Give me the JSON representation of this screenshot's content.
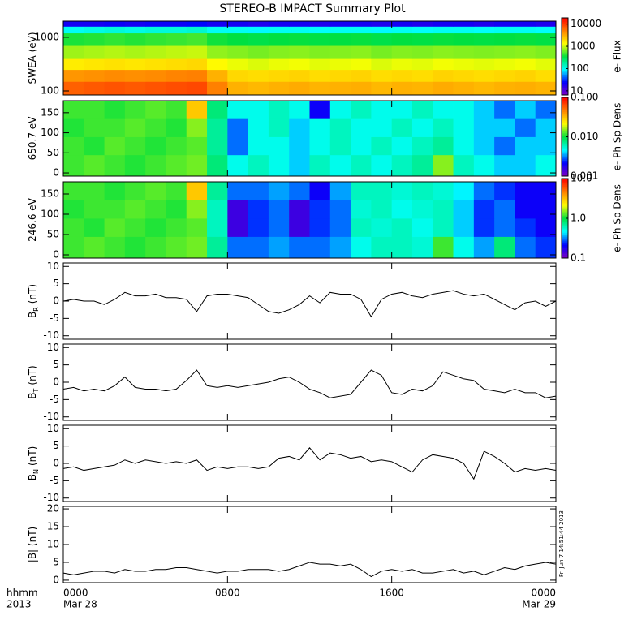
{
  "title": "STEREO-B IMPACT Summary Plot",
  "x_axis": {
    "xlim": [
      0,
      24
    ],
    "xticks": [
      {
        "value": 0,
        "label": "0000"
      },
      {
        "value": 8,
        "label": "0800"
      },
      {
        "value": 16,
        "label": "1600"
      },
      {
        "value": 24,
        "label": "0000"
      }
    ],
    "xtick_dates": [
      {
        "value": 0,
        "label": "Mar 28"
      },
      {
        "value": 24,
        "label": "Mar 29"
      }
    ],
    "unit_label": "hhmm",
    "year": "2013",
    "bins": [
      0,
      1,
      2,
      3,
      4,
      5,
      6,
      7,
      8,
      9,
      10,
      11,
      12,
      13,
      14,
      15,
      16,
      17,
      18,
      19,
      20,
      21,
      22,
      23,
      24
    ],
    "x": [
      0,
      0.5,
      1,
      1.5,
      2,
      2.5,
      3,
      3.5,
      4,
      4.5,
      5,
      5.5,
      6,
      6.5,
      7,
      7.5,
      8,
      8.5,
      9,
      9.5,
      10,
      10.5,
      11,
      11.5,
      12,
      12.5,
      13,
      13.5,
      14,
      14.5,
      15,
      15.5,
      16,
      16.5,
      17,
      17.5,
      18,
      18.5,
      19,
      19.5,
      20,
      20.5,
      21,
      21.5,
      22,
      22.5,
      23,
      23.5,
      24
    ]
  },
  "colormap": [
    "#8000c0",
    "#0000ff",
    "#00ffff",
    "#00e040",
    "#ffff00",
    "#ff8000",
    "#ff0000"
  ],
  "timestamp": "Fri Jun  7 14:51:44 2013",
  "chart_data": [
    {
      "type": "spectrogram",
      "ylabel": "SWEA (eV)",
      "log": true,
      "ylim": [
        84,
        2000
      ],
      "yticks": [
        100,
        1000
      ],
      "ybins": [
        84,
        150,
        250,
        400,
        700,
        1200,
        1600,
        2000
      ],
      "zlabel": "e- Flux",
      "zlim": [
        6.5,
        19000
      ],
      "zticks": [
        10,
        100,
        1000,
        10000
      ],
      "z": [
        [
          7000,
          7500,
          8000,
          7500,
          8000,
          8500,
          9000,
          5000,
          3000,
          2800,
          3000,
          3200,
          2900,
          3000,
          3100,
          2800,
          3000,
          2900,
          3200,
          3000,
          2800,
          3000,
          3100,
          2900
        ],
        [
          4000,
          4200,
          4500,
          4300,
          4500,
          4800,
          5000,
          3000,
          2000,
          1900,
          2000,
          2100,
          1900,
          2000,
          2100,
          1900,
          2000,
          1900,
          2100,
          2000,
          1900,
          2000,
          2100,
          1900
        ],
        [
          1600,
          1700,
          1800,
          1700,
          1800,
          1900,
          2000,
          1400,
          1200,
          1100,
          1200,
          1250,
          1150,
          1200,
          1250,
          1100,
          1200,
          1150,
          1250,
          1200,
          1150,
          1200,
          1250,
          1150
        ],
        [
          800,
          850,
          900,
          850,
          900,
          950,
          1000,
          750,
          700,
          650,
          700,
          720,
          680,
          700,
          720,
          650,
          700,
          680,
          720,
          700,
          680,
          700,
          720,
          680
        ],
        [
          400,
          420,
          450,
          420,
          450,
          470,
          500,
          380,
          350,
          330,
          350,
          360,
          340,
          350,
          360,
          330,
          350,
          340,
          360,
          350,
          340,
          350,
          360,
          340
        ],
        [
          100,
          110,
          120,
          110,
          120,
          120,
          130,
          100,
          100,
          90,
          100,
          100,
          95,
          100,
          100,
          90,
          100,
          95,
          100,
          100,
          95,
          100,
          100,
          95
        ],
        [
          20,
          20,
          22,
          20,
          22,
          22,
          25,
          20,
          20,
          18,
          20,
          20,
          18,
          20,
          20,
          18,
          20,
          18,
          20,
          20,
          18,
          20,
          20,
          18
        ]
      ]
    },
    {
      "type": "spectrogram",
      "ylabel": "650.7 eV",
      "ylim": [
        -8,
        180
      ],
      "yticks": [
        0,
        50,
        100,
        150
      ],
      "ybins": [
        0,
        45,
        90,
        135,
        180
      ],
      "zlabel": "e- Ph Sp Dens",
      "zlim": [
        0.001,
        0.1
      ],
      "zticks": [
        0.001,
        {
          "value": 0.01,
          "label": "0.010"
        },
        {
          "value": 0.1,
          "label": "0.100"
        }
      ],
      "z": [
        [
          0.012,
          0.013,
          0.012,
          0.011,
          0.012,
          0.013,
          0.014,
          0.008,
          0.005,
          0.006,
          0.005,
          0.004,
          0.006,
          0.005,
          0.006,
          0.005,
          0.006,
          0.007,
          0.015,
          0.006,
          0.005,
          0.004,
          0.004,
          0.005
        ],
        [
          0.012,
          0.011,
          0.013,
          0.012,
          0.011,
          0.012,
          0.013,
          0.007,
          0.003,
          0.005,
          0.005,
          0.004,
          0.005,
          0.006,
          0.005,
          0.006,
          0.005,
          0.006,
          0.007,
          0.005,
          0.004,
          0.003,
          0.004,
          0.004
        ],
        [
          0.011,
          0.012,
          0.012,
          0.013,
          0.012,
          0.011,
          0.015,
          0.007,
          0.003,
          0.005,
          0.006,
          0.004,
          0.005,
          0.006,
          0.005,
          0.005,
          0.006,
          0.005,
          0.006,
          0.005,
          0.004,
          0.004,
          0.003,
          0.004
        ],
        [
          0.012,
          0.012,
          0.011,
          0.012,
          0.013,
          0.012,
          0.03,
          0.008,
          0.005,
          0.005,
          0.006,
          0.005,
          0.002,
          0.005,
          0.006,
          0.005,
          0.005,
          0.006,
          0.005,
          0.005,
          0.004,
          0.003,
          0.004,
          0.003
        ]
      ]
    },
    {
      "type": "spectrogram",
      "ylabel": "246.6 eV",
      "ylim": [
        -8,
        180
      ],
      "yticks": [
        0,
        50,
        100,
        150
      ],
      "ybins": [
        0,
        45,
        90,
        135,
        180
      ],
      "zlabel": "e- Ph Sp Dens",
      "zlim": [
        0.1,
        10
      ],
      "zticks": [
        0.1,
        {
          "value": 1,
          "label": "1.0"
        },
        {
          "value": 10,
          "label": "10.0"
        }
      ],
      "z": [
        [
          1.2,
          1.3,
          1.2,
          1.1,
          1.2,
          1.3,
          1.4,
          0.7,
          0.3,
          0.3,
          0.35,
          0.3,
          0.3,
          0.35,
          0.5,
          0.6,
          0.6,
          0.55,
          1.2,
          0.5,
          0.35,
          0.8,
          0.3,
          0.25
        ],
        [
          1.2,
          1.1,
          1.3,
          1.2,
          1.1,
          1.2,
          1.3,
          0.6,
          0.15,
          0.25,
          0.3,
          0.15,
          0.25,
          0.3,
          0.6,
          0.55,
          0.6,
          0.5,
          0.6,
          0.4,
          0.25,
          0.3,
          0.25,
          0.2
        ],
        [
          1.1,
          1.2,
          1.2,
          1.3,
          1.2,
          1.1,
          1.5,
          0.6,
          0.15,
          0.25,
          0.3,
          0.15,
          0.25,
          0.3,
          0.55,
          0.6,
          0.5,
          0.55,
          0.6,
          0.4,
          0.25,
          0.3,
          0.2,
          0.2
        ],
        [
          1.2,
          1.2,
          1.1,
          1.2,
          1.3,
          1.2,
          3.0,
          0.7,
          0.3,
          0.3,
          0.35,
          0.3,
          0.2,
          0.35,
          0.6,
          0.6,
          0.55,
          0.6,
          0.55,
          0.45,
          0.3,
          0.25,
          0.2,
          0.2
        ]
      ]
    },
    {
      "type": "line",
      "ylabel": "B",
      "ylabel_sub": "R",
      "ylabel_unit": "(nT)",
      "color": "#000000",
      "ylim": [
        -11,
        11
      ],
      "yticks": [
        -10,
        -5,
        0,
        5,
        10
      ],
      "values": [
        0,
        0.5,
        0,
        0,
        -1,
        0.5,
        2.5,
        1.5,
        1.5,
        2,
        1,
        1,
        0.5,
        -3,
        1.5,
        2,
        2,
        1.5,
        1,
        -1,
        -3,
        -3.5,
        -2.5,
        -1,
        1.5,
        -0.5,
        2.5,
        2,
        2,
        0.5,
        -4.5,
        0.5,
        2,
        2.5,
        1.5,
        1,
        2,
        2.5,
        3,
        2,
        1.5,
        2,
        0.5,
        -1,
        -2.5,
        -0.5,
        0,
        -1.5,
        0
      ]
    },
    {
      "type": "line",
      "ylabel": "B",
      "ylabel_sub": "T",
      "ylabel_unit": "(nT)",
      "color": "#000000",
      "ylim": [
        -11,
        11
      ],
      "yticks": [
        -10,
        -5,
        0,
        5,
        10
      ],
      "values": [
        -2,
        -1.5,
        -2.5,
        -2,
        -2.5,
        -1,
        1.5,
        -1.5,
        -2,
        -2,
        -2.5,
        -2,
        0.5,
        3.5,
        -1,
        -1.5,
        -1,
        -1.5,
        -1,
        -0.5,
        0,
        1,
        1.5,
        0,
        -2,
        -3,
        -4.5,
        -4,
        -3.5,
        0,
        3.5,
        2,
        -3,
        -3.5,
        -2,
        -2.5,
        -1,
        3,
        2,
        1,
        0.5,
        -2,
        -2.5,
        -3,
        -2,
        -3,
        -3,
        -4.5,
        -4
      ]
    },
    {
      "type": "line",
      "ylabel": "B",
      "ylabel_sub": "N",
      "ylabel_unit": "(nT)",
      "color": "#000000",
      "ylim": [
        -11,
        11
      ],
      "yticks": [
        -10,
        -5,
        0,
        5,
        10
      ],
      "values": [
        -1.5,
        -1,
        -2,
        -1.5,
        -1,
        -0.5,
        1,
        0,
        1,
        0.5,
        0,
        0.5,
        0,
        1,
        -2,
        -1,
        -1.5,
        -1,
        -1,
        -1.5,
        -1,
        1.5,
        2,
        1,
        4.5,
        1,
        3,
        2.5,
        1.5,
        2,
        0.5,
        1,
        0.5,
        -1,
        -2.5,
        1,
        2.5,
        2,
        1.5,
        0,
        -4.5,
        3.5,
        2,
        0,
        -2.5,
        -1.5,
        -2,
        -1.5,
        -2
      ]
    },
    {
      "type": "line",
      "ylabel": "|B| (nT)",
      "color": "#000000",
      "ylim": [
        -0.7,
        20.7
      ],
      "yticks": [
        0,
        5,
        10,
        15,
        20
      ],
      "values": [
        2,
        1.5,
        2,
        2.5,
        2.5,
        2,
        3,
        2.5,
        2.5,
        3,
        3,
        3.5,
        3.5,
        3,
        2.5,
        2,
        2.5,
        2.5,
        3,
        3,
        3,
        2.5,
        3,
        4,
        5,
        4.5,
        4.5,
        4,
        4.5,
        3,
        1,
        2.5,
        3,
        2.5,
        3,
        2,
        2,
        2.5,
        3,
        2,
        2.5,
        1.5,
        2.5,
        3.5,
        3,
        4,
        4.5,
        5,
        4.5
      ]
    }
  ]
}
